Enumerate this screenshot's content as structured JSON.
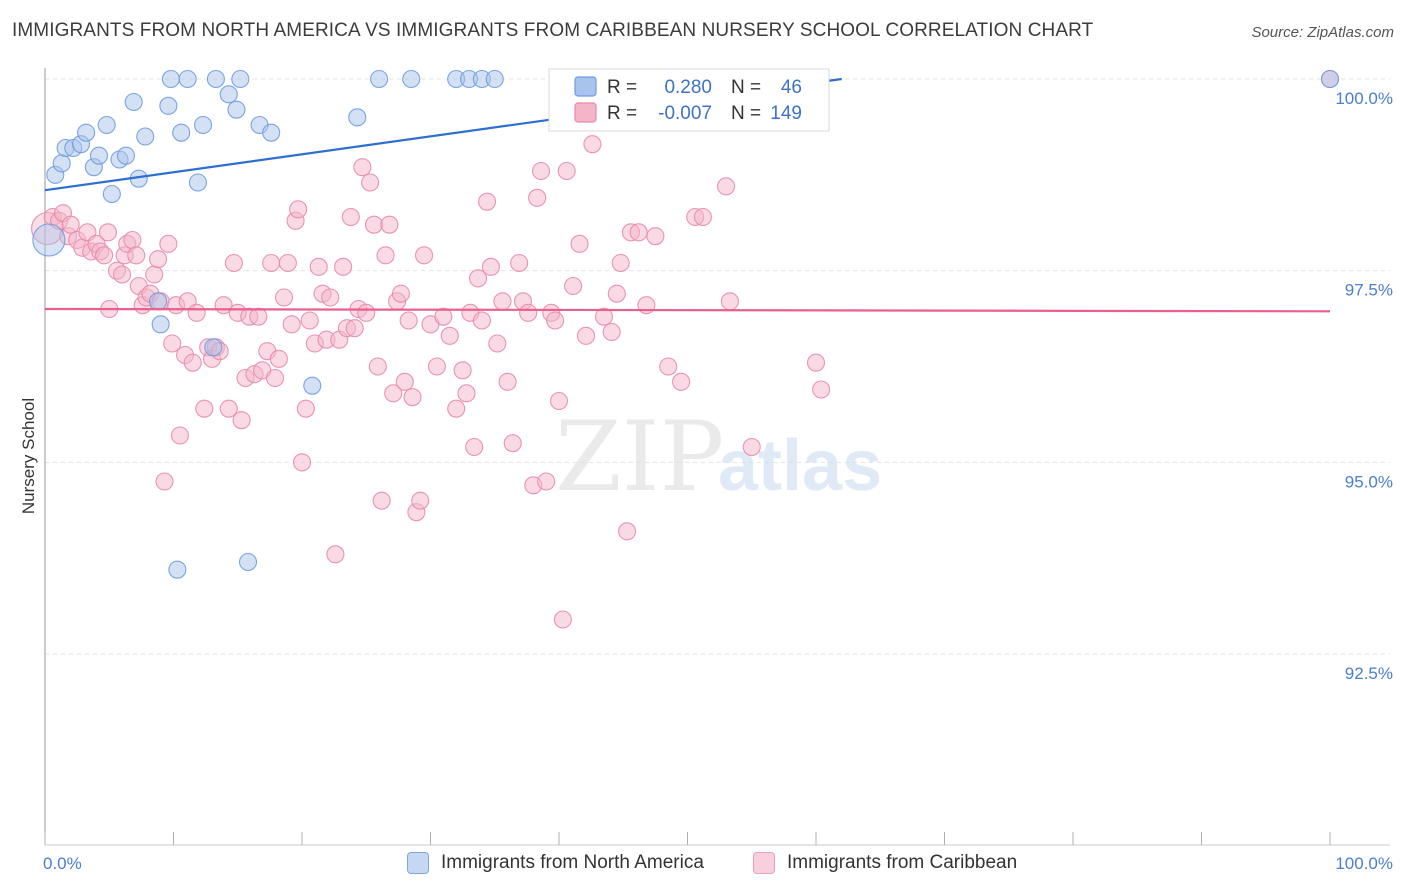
{
  "title": "IMMIGRANTS FROM NORTH AMERICA VS IMMIGRANTS FROM CARIBBEAN NURSERY SCHOOL CORRELATION CHART",
  "source": "Source: ZipAtlas.com",
  "watermark": {
    "zip": "ZIP",
    "atlas": "atlas"
  },
  "colors": {
    "blue": "#a9c4ec",
    "blue_stroke": "#6d9be0",
    "blue_line": "#2d6fd0",
    "pink": "#f4b5c9",
    "pink_stroke": "#e88aa8",
    "pink_line": "#e8608b",
    "tick_label": "#4a7fc9",
    "grid": "#e3e3e3"
  },
  "legend": {
    "r_label": "R =",
    "n_label": "N =",
    "blue": {
      "r": "0.280",
      "n": "46"
    },
    "pink": {
      "r": "-0.007",
      "n": "149"
    }
  },
  "bottom_legend": {
    "blue": "Immigrants from North America",
    "pink": "Immigrants from Caribbean"
  },
  "chart_data": {
    "type": "scatter",
    "ylabel": "Nursery School",
    "xlabel": "",
    "xlim": [
      0,
      100
    ],
    "ylim": [
      90,
      100.4
    ],
    "x_tick_labels": [
      "0.0%",
      "100.0%"
    ],
    "y_ticks": [
      {
        "value": 92.5,
        "label": "92.5%"
      },
      {
        "value": 95.0,
        "label": "95.0%"
      },
      {
        "value": 97.5,
        "label": "97.5%"
      },
      {
        "value": 100.0,
        "label": "100.0%"
      }
    ],
    "grid": true,
    "legend_position": "top-center",
    "series": [
      {
        "name": "Immigrants from North America",
        "color": "blue",
        "trend": {
          "x0": 0,
          "y0": 98.55,
          "x1": 62,
          "y1": 100.0
        },
        "points": [
          [
            0.3,
            97.9,
            "L"
          ],
          [
            0.8,
            98.75
          ],
          [
            1.3,
            98.9
          ],
          [
            1.6,
            99.1
          ],
          [
            2.2,
            99.1
          ],
          [
            2.8,
            99.15
          ],
          [
            3.2,
            99.3
          ],
          [
            3.8,
            98.85
          ],
          [
            4.2,
            99.0
          ],
          [
            4.8,
            99.4
          ],
          [
            5.2,
            98.5
          ],
          [
            5.8,
            98.95
          ],
          [
            6.3,
            99.0
          ],
          [
            6.9,
            99.7
          ],
          [
            7.3,
            98.7
          ],
          [
            7.8,
            99.25
          ],
          [
            8.8,
            97.1
          ],
          [
            9.0,
            96.8
          ],
          [
            9.6,
            99.65
          ],
          [
            9.8,
            100.0
          ],
          [
            10.3,
            93.6
          ],
          [
            10.6,
            99.3
          ],
          [
            11.1,
            100.0
          ],
          [
            11.9,
            98.65
          ],
          [
            12.3,
            99.4
          ],
          [
            13.1,
            96.5
          ],
          [
            13.3,
            100.0
          ],
          [
            14.3,
            99.8
          ],
          [
            14.9,
            99.6
          ],
          [
            15.2,
            100.0
          ],
          [
            15.8,
            93.7
          ],
          [
            16.7,
            99.4
          ],
          [
            17.6,
            99.3
          ],
          [
            20.8,
            96.0
          ],
          [
            24.3,
            99.5
          ],
          [
            26.0,
            100.0
          ],
          [
            28.5,
            100.0
          ],
          [
            32.0,
            100.0
          ],
          [
            33.0,
            100.0
          ],
          [
            34.0,
            100.0
          ],
          [
            35.0,
            100.0
          ],
          [
            40.5,
            100.0
          ],
          [
            46.0,
            100.0
          ],
          [
            60.0,
            100.0
          ],
          [
            100.0,
            100.0
          ]
        ]
      },
      {
        "name": "Immigrants from Caribbean",
        "color": "pink",
        "trend": {
          "x0": 0,
          "y0": 97.0,
          "x1": 100,
          "y1": 96.97
        },
        "points": [
          [
            0.2,
            98.05,
            "L"
          ],
          [
            0.6,
            98.2
          ],
          [
            1.1,
            98.15
          ],
          [
            1.4,
            98.25
          ],
          [
            1.8,
            97.95
          ],
          [
            2.0,
            98.1
          ],
          [
            2.5,
            97.9
          ],
          [
            2.9,
            97.8
          ],
          [
            3.3,
            98.0
          ],
          [
            3.6,
            97.75
          ],
          [
            4.0,
            97.85
          ],
          [
            4.3,
            97.75
          ],
          [
            4.6,
            97.7
          ],
          [
            4.9,
            98.0
          ],
          [
            5.0,
            97.0
          ],
          [
            5.6,
            97.5
          ],
          [
            6.0,
            97.45
          ],
          [
            6.2,
            97.7
          ],
          [
            6.4,
            97.85
          ],
          [
            6.8,
            97.9
          ],
          [
            7.1,
            97.7
          ],
          [
            7.3,
            97.3
          ],
          [
            7.6,
            97.05
          ],
          [
            7.9,
            97.15
          ],
          [
            8.2,
            97.2
          ],
          [
            8.5,
            97.45
          ],
          [
            8.8,
            97.65
          ],
          [
            9.0,
            97.1
          ],
          [
            9.3,
            94.75
          ],
          [
            9.6,
            97.85
          ],
          [
            9.9,
            96.55
          ],
          [
            10.2,
            97.05
          ],
          [
            10.5,
            95.35
          ],
          [
            10.9,
            96.4
          ],
          [
            11.1,
            97.1
          ],
          [
            11.5,
            96.3
          ],
          [
            11.8,
            96.95
          ],
          [
            12.4,
            95.7
          ],
          [
            12.7,
            96.5
          ],
          [
            13.0,
            96.35
          ],
          [
            13.3,
            96.5
          ],
          [
            13.6,
            96.45
          ],
          [
            13.9,
            97.05
          ],
          [
            14.3,
            95.7
          ],
          [
            14.7,
            97.6
          ],
          [
            15.0,
            96.95
          ],
          [
            15.3,
            95.55
          ],
          [
            15.6,
            96.1
          ],
          [
            15.9,
            96.9
          ],
          [
            16.3,
            96.15
          ],
          [
            16.6,
            96.9
          ],
          [
            16.9,
            96.2
          ],
          [
            17.3,
            96.45
          ],
          [
            17.6,
            97.6
          ],
          [
            17.9,
            96.1
          ],
          [
            18.2,
            96.35
          ],
          [
            18.6,
            97.15
          ],
          [
            18.9,
            97.6
          ],
          [
            19.2,
            96.8
          ],
          [
            19.5,
            98.15
          ],
          [
            19.7,
            98.3
          ],
          [
            20.0,
            95.0
          ],
          [
            20.3,
            95.7
          ],
          [
            20.6,
            96.85
          ],
          [
            21.0,
            96.55
          ],
          [
            21.3,
            97.55
          ],
          [
            21.6,
            97.2
          ],
          [
            21.9,
            96.6
          ],
          [
            22.2,
            97.15
          ],
          [
            22.6,
            93.8
          ],
          [
            22.9,
            96.6
          ],
          [
            23.2,
            97.55
          ],
          [
            23.5,
            96.75
          ],
          [
            23.8,
            98.2
          ],
          [
            24.1,
            96.75
          ],
          [
            24.4,
            97.0
          ],
          [
            24.7,
            98.85
          ],
          [
            25.0,
            96.95
          ],
          [
            25.3,
            98.65
          ],
          [
            25.6,
            98.1
          ],
          [
            25.9,
            96.25
          ],
          [
            26.2,
            94.5
          ],
          [
            26.5,
            97.7
          ],
          [
            26.8,
            98.1
          ],
          [
            27.1,
            95.9
          ],
          [
            27.4,
            97.1
          ],
          [
            27.7,
            97.2
          ],
          [
            28.0,
            96.05
          ],
          [
            28.3,
            96.85
          ],
          [
            28.6,
            95.85
          ],
          [
            28.9,
            94.35
          ],
          [
            29.2,
            94.5
          ],
          [
            29.5,
            97.7
          ],
          [
            30.0,
            96.8
          ],
          [
            30.5,
            96.25
          ],
          [
            31.0,
            96.9
          ],
          [
            31.5,
            96.65
          ],
          [
            32.0,
            95.7
          ],
          [
            32.5,
            96.2
          ],
          [
            32.8,
            95.9
          ],
          [
            33.1,
            96.95
          ],
          [
            33.4,
            95.2
          ],
          [
            33.7,
            97.4
          ],
          [
            34.0,
            96.85
          ],
          [
            34.4,
            98.4
          ],
          [
            34.7,
            97.55
          ],
          [
            35.2,
            96.55
          ],
          [
            35.6,
            97.1
          ],
          [
            36.0,
            96.05
          ],
          [
            36.4,
            95.25
          ],
          [
            36.9,
            97.6
          ],
          [
            37.2,
            97.1
          ],
          [
            37.6,
            96.95
          ],
          [
            38.0,
            94.7
          ],
          [
            38.3,
            98.45
          ],
          [
            38.6,
            98.8
          ],
          [
            39.0,
            94.75
          ],
          [
            39.4,
            96.95
          ],
          [
            39.7,
            96.85
          ],
          [
            40.0,
            95.8
          ],
          [
            40.3,
            92.95
          ],
          [
            40.6,
            98.8
          ],
          [
            41.1,
            97.3
          ],
          [
            41.6,
            97.85
          ],
          [
            42.1,
            96.65
          ],
          [
            42.6,
            99.15
          ],
          [
            43.5,
            96.9
          ],
          [
            44.1,
            96.7
          ],
          [
            44.5,
            97.2
          ],
          [
            44.8,
            97.6
          ],
          [
            45.3,
            94.1
          ],
          [
            45.6,
            98.0
          ],
          [
            46.2,
            98.0
          ],
          [
            46.8,
            97.05
          ],
          [
            47.5,
            97.95
          ],
          [
            48.5,
            96.25
          ],
          [
            49.5,
            96.05
          ],
          [
            50.6,
            98.2
          ],
          [
            51.2,
            98.2
          ],
          [
            53.0,
            98.6
          ],
          [
            53.3,
            97.1
          ],
          [
            55.0,
            95.2
          ],
          [
            60.0,
            96.3
          ],
          [
            60.4,
            95.95
          ],
          [
            100.0,
            100.0
          ]
        ]
      }
    ]
  }
}
